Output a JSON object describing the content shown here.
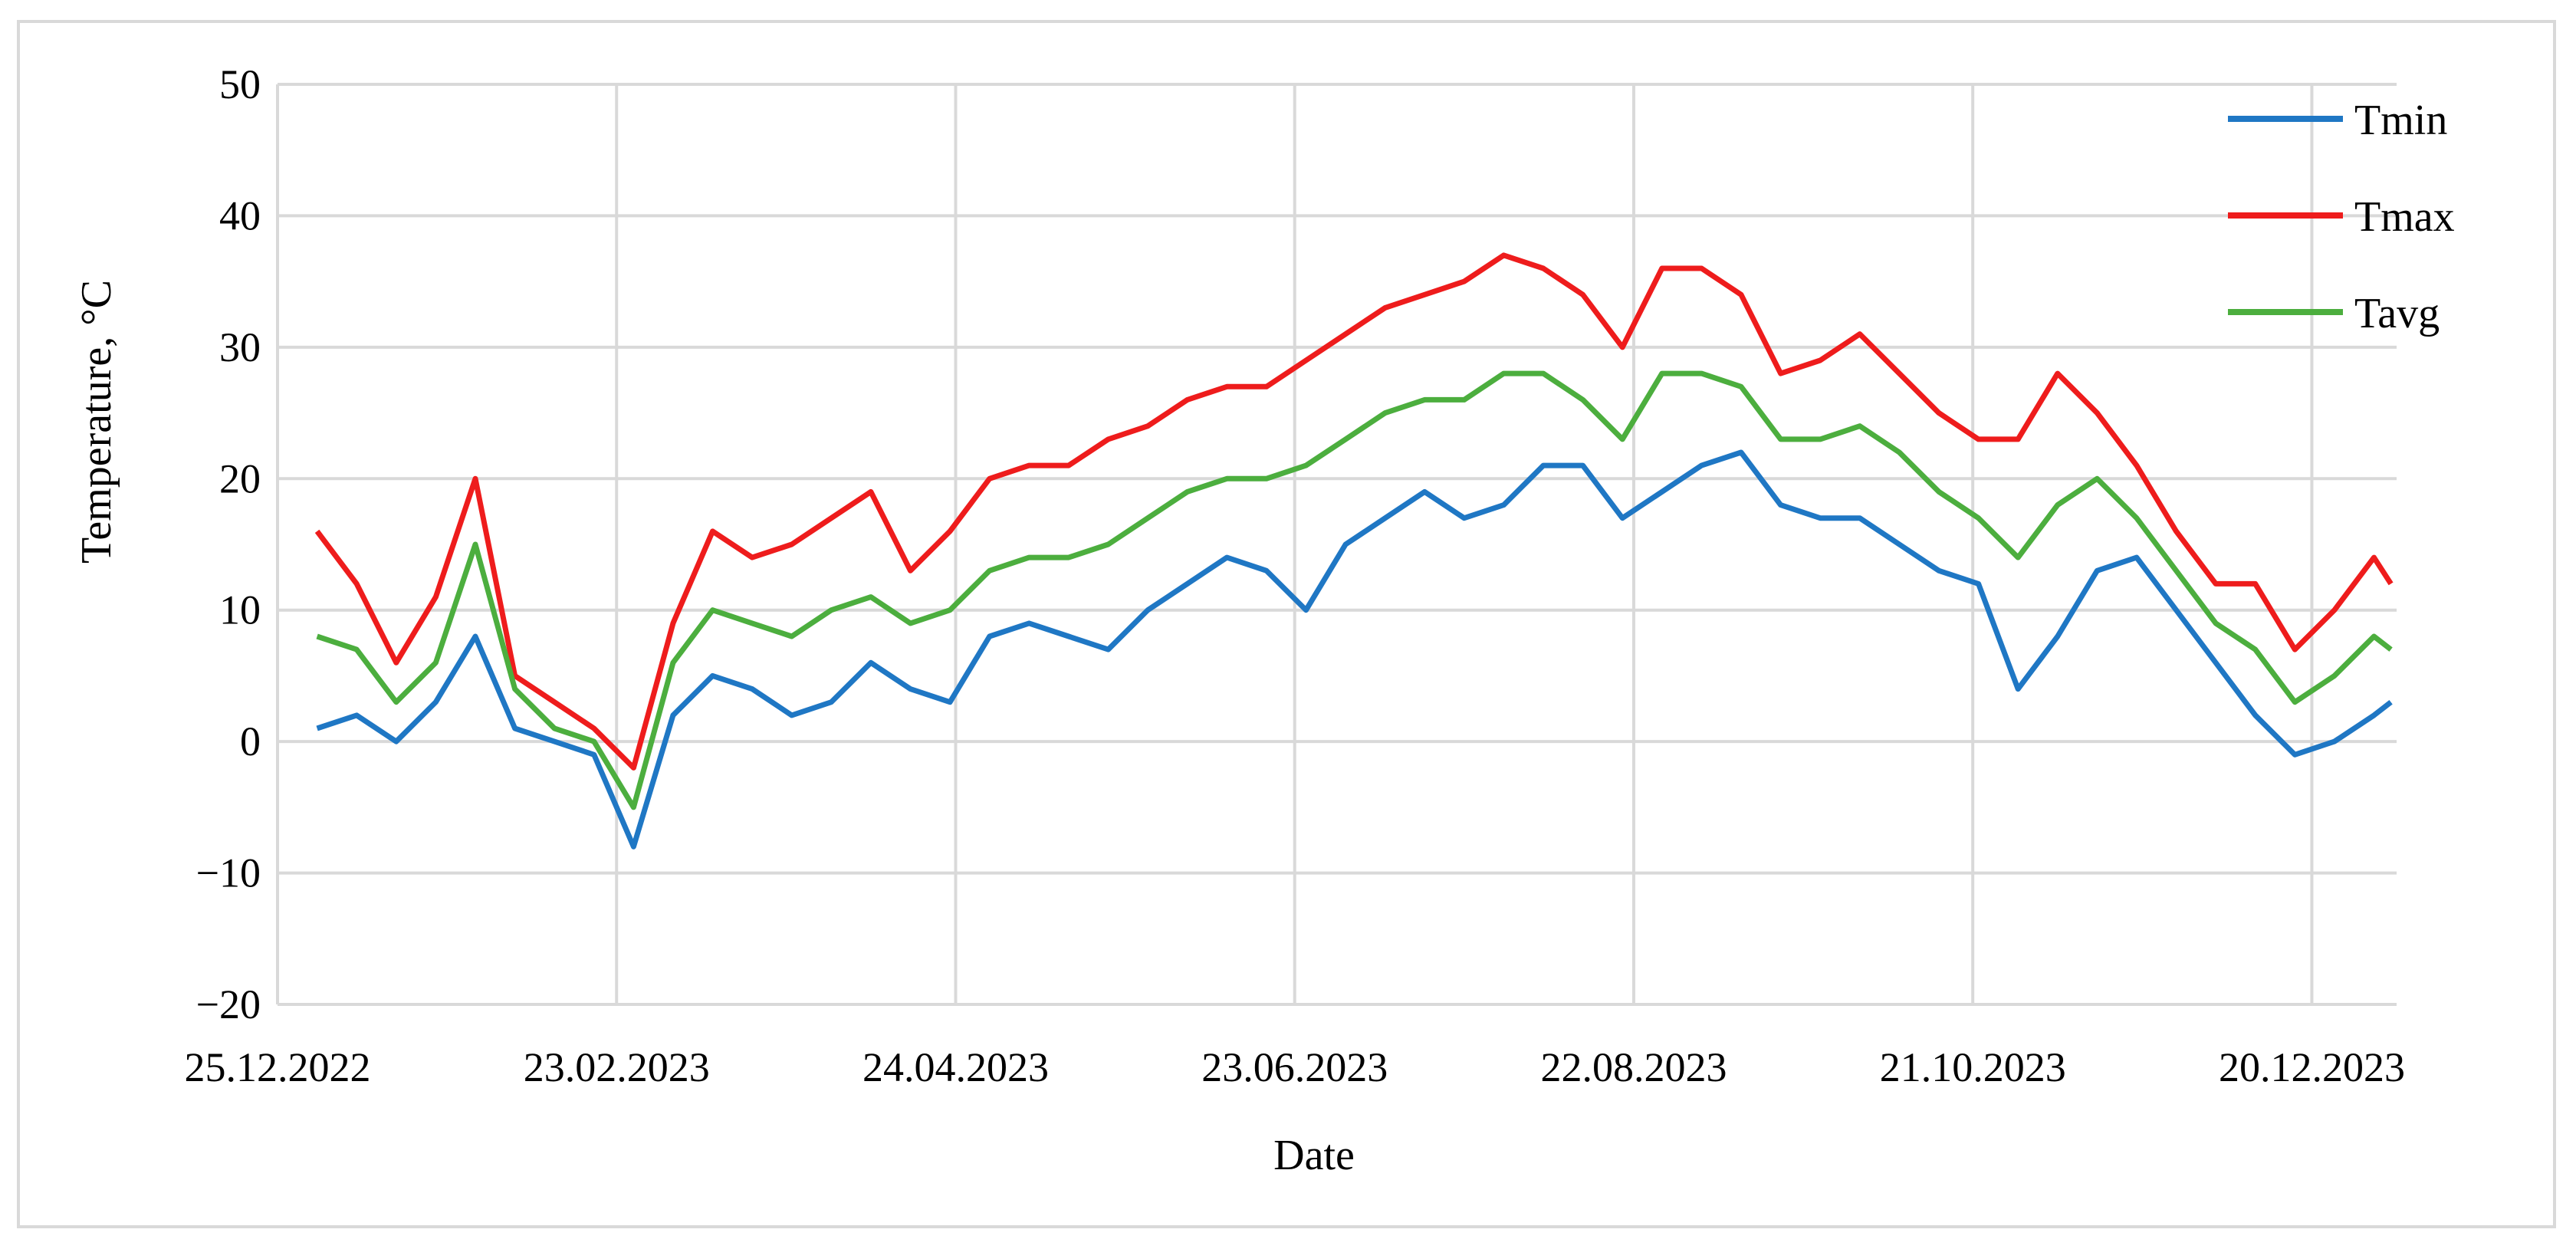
{
  "chart_data": {
    "type": "line",
    "xlabel": "Date",
    "ylabel": "Temperature, °C",
    "ylim": [
      -20,
      50
    ],
    "y_ticks": [
      50,
      40,
      30,
      20,
      10,
      0,
      -10,
      -20
    ],
    "y_tick_labels": [
      "50",
      "40",
      "30",
      "20",
      "10",
      "0",
      "−10",
      "−20"
    ],
    "xlim": [
      "2022-12-25",
      "2024-01-04"
    ],
    "x_ticks": [
      "2022-12-25",
      "2023-02-23",
      "2023-04-24",
      "2023-06-23",
      "2023-08-22",
      "2023-10-21",
      "2023-12-20"
    ],
    "x_tick_labels": [
      "25.12.2022",
      "23.02.2023",
      "24.04.2023",
      "23.06.2023",
      "22.08.2023",
      "21.10.2023",
      "20.12.2023"
    ],
    "grid": "both",
    "legend_position": "top-right",
    "x": [
      "2023-01-01",
      "2023-01-08",
      "2023-01-15",
      "2023-01-22",
      "2023-01-29",
      "2023-02-05",
      "2023-02-12",
      "2023-02-19",
      "2023-02-26",
      "2023-03-05",
      "2023-03-12",
      "2023-03-19",
      "2023-03-26",
      "2023-04-02",
      "2023-04-09",
      "2023-04-16",
      "2023-04-23",
      "2023-04-30",
      "2023-05-07",
      "2023-05-14",
      "2023-05-21",
      "2023-05-28",
      "2023-06-04",
      "2023-06-11",
      "2023-06-18",
      "2023-06-25",
      "2023-07-02",
      "2023-07-09",
      "2023-07-16",
      "2023-07-23",
      "2023-07-30",
      "2023-08-06",
      "2023-08-13",
      "2023-08-20",
      "2023-08-27",
      "2023-09-03",
      "2023-09-10",
      "2023-09-17",
      "2023-09-24",
      "2023-10-01",
      "2023-10-08",
      "2023-10-15",
      "2023-10-22",
      "2023-10-29",
      "2023-11-05",
      "2023-11-12",
      "2023-11-19",
      "2023-11-26",
      "2023-12-03",
      "2023-12-10",
      "2023-12-17",
      "2023-12-24",
      "2023-12-31",
      "2024-01-03"
    ],
    "series": [
      {
        "name": "Tmin",
        "color": "#1f77c4",
        "values": [
          1,
          2,
          0,
          3,
          8,
          1,
          0,
          -1,
          -8,
          2,
          5,
          4,
          2,
          3,
          6,
          4,
          3,
          8,
          9,
          8,
          7,
          10,
          12,
          14,
          13,
          10,
          15,
          17,
          19,
          17,
          18,
          21,
          21,
          17,
          19,
          21,
          22,
          18,
          17,
          17,
          15,
          13,
          12,
          4,
          8,
          13,
          14,
          10,
          6,
          2,
          -1,
          0,
          2,
          3
        ]
      },
      {
        "name": "Tmax",
        "color": "#ee1c1c",
        "values": [
          16,
          12,
          6,
          11,
          20,
          5,
          3,
          1,
          -2,
          9,
          16,
          14,
          15,
          17,
          19,
          13,
          16,
          20,
          21,
          21,
          23,
          24,
          26,
          27,
          27,
          29,
          31,
          33,
          34,
          35,
          37,
          36,
          34,
          30,
          36,
          36,
          34,
          28,
          29,
          31,
          28,
          25,
          23,
          23,
          28,
          25,
          21,
          16,
          12,
          12,
          7,
          10,
          14,
          12
        ]
      },
      {
        "name": "Tavg",
        "color": "#4cae3e",
        "values": [
          8,
          7,
          3,
          6,
          15,
          4,
          1,
          0,
          -5,
          6,
          10,
          9,
          8,
          10,
          11,
          9,
          10,
          13,
          14,
          14,
          15,
          17,
          19,
          20,
          20,
          21,
          23,
          25,
          26,
          26,
          28,
          28,
          26,
          23,
          28,
          28,
          27,
          23,
          23,
          24,
          22,
          19,
          17,
          14,
          18,
          20,
          17,
          13,
          9,
          7,
          3,
          5,
          8,
          7
        ]
      }
    ]
  }
}
